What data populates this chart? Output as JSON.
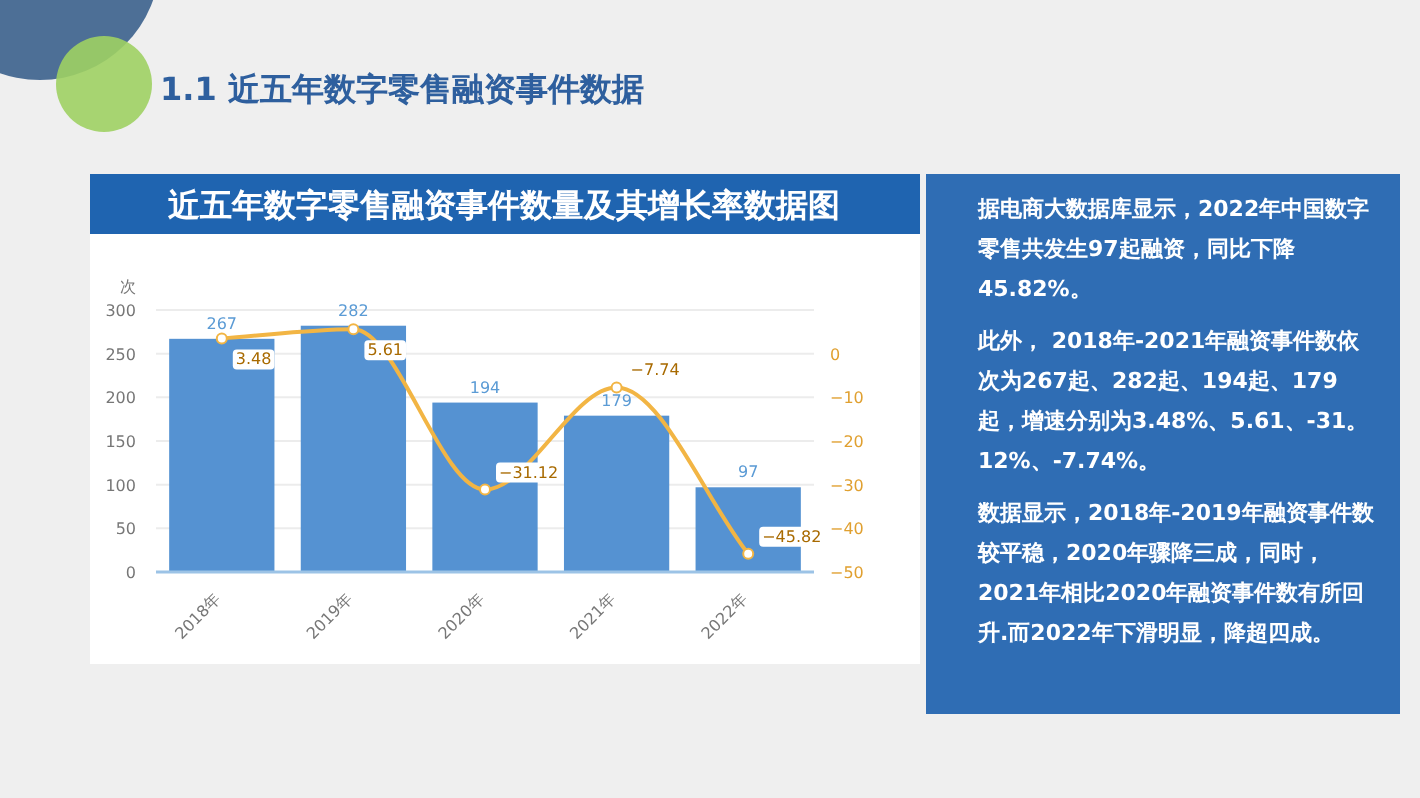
{
  "chart_data": [
    {
      "type": "bar",
      "title": "近五年数字零售融资事件数量及其增长率数据图",
      "ylabel": "次",
      "annotations": [
        "1.1 近五年数字零售融资事件数据"
      ],
      "categories": [
        "2018年",
        "2019年",
        "2020年",
        "2021年",
        "2022年"
      ],
      "series": [
        {
          "type": "bar",
          "color": "#5592d2",
          "values": [
            267,
            282,
            194,
            179,
            97
          ]
        },
        {
          "type": "line",
          "axis": "y2",
          "color": "#f2b544",
          "values": [
            3.48,
            5.61,
            -31.12,
            -7.74,
            -45.82
          ],
          "marker": "circle"
        }
      ],
      "ylim": [
        0,
        300
      ],
      "yticks": [
        0,
        50,
        100,
        150,
        200,
        250,
        300
      ],
      "y2lim": [
        -50,
        10
      ],
      "y2ticks": [
        -50,
        -40,
        -30,
        -20,
        -10,
        0
      ],
      "grid": "y",
      "data_labels": true
    },
    {
      "type": "other",
      "annotations": [
        "据电商大数据库显示，2022年中国数字零售共发生97起融资，同比下降45.82%。",
        "此外， 2018年-2021年融资事件数依次为267起、282起、194起、179起，增速分别为3.48%、5.61、-31。12%、-7.74%。",
        "数据显示，2018年-2019年融资事件数较平稳，2020年骤降三成，同时，2021年相比2020年融资事件数有所回升.而2022年下滑明显，降超四成。"
      ]
    }
  ]
}
